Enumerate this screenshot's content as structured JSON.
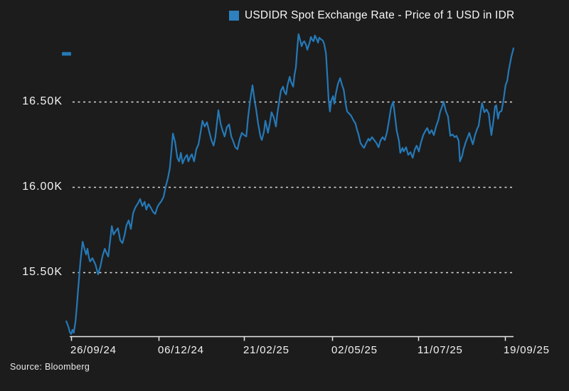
{
  "source": "Source: Bloomberg",
  "colors": {
    "background": "#1c1c1c",
    "line": "#2579b7",
    "legend_swatch": "#2e7fbd",
    "text": "#f2f2f2",
    "grid": "#f0f0f0",
    "axis": "#e8e8e8"
  },
  "chart_data": {
    "type": "line",
    "title": "USDIDR Spot Exchange Rate - Price of 1 USD in IDR",
    "xlabel": "",
    "ylabel": "",
    "legend_position": "top",
    "grid": "horizontal-dotted",
    "x_ticks": [
      "26/09/24",
      "06/12/24",
      "21/02/25",
      "02/05/25",
      "11/07/25",
      "19/09/25"
    ],
    "y_ticks": [
      {
        "label": "16.50K",
        "value": 16.5
      },
      {
        "label": "16.00K",
        "value": 16.0
      },
      {
        "label": "15.50K",
        "value": 15.5
      }
    ],
    "ylim": [
      15.125,
      16.95
    ],
    "last_value_marker": {
      "value": 16.78,
      "color": "#2579b7"
    },
    "series": [
      {
        "name": "USDIDR Spot Exchange Rate",
        "color": "#2579b7",
        "units": "thousand IDR per USD",
        "points": [
          [
            -0.011,
            15.213
          ],
          [
            -0.006,
            15.179
          ],
          [
            -0.003,
            15.15
          ],
          [
            0,
            15.138
          ],
          [
            0.003,
            15.163
          ],
          [
            0.006,
            15.146
          ],
          [
            0.01,
            15.213
          ],
          [
            0.013,
            15.304
          ],
          [
            0.016,
            15.408
          ],
          [
            0.021,
            15.563
          ],
          [
            0.026,
            15.679
          ],
          [
            0.031,
            15.629
          ],
          [
            0.034,
            15.604
          ],
          [
            0.037,
            15.638
          ],
          [
            0.04,
            15.588
          ],
          [
            0.043,
            15.563
          ],
          [
            0.048,
            15.583
          ],
          [
            0.055,
            15.546
          ],
          [
            0.061,
            15.488
          ],
          [
            0.066,
            15.533
          ],
          [
            0.071,
            15.596
          ],
          [
            0.076,
            15.638
          ],
          [
            0.08,
            15.613
          ],
          [
            0.084,
            15.592
          ],
          [
            0.088,
            15.679
          ],
          [
            0.092,
            15.771
          ],
          [
            0.096,
            15.721
          ],
          [
            0.101,
            15.742
          ],
          [
            0.106,
            15.758
          ],
          [
            0.111,
            15.688
          ],
          [
            0.116,
            15.671
          ],
          [
            0.121,
            15.721
          ],
          [
            0.125,
            15.775
          ],
          [
            0.13,
            15.804
          ],
          [
            0.135,
            15.754
          ],
          [
            0.14,
            15.846
          ],
          [
            0.145,
            15.879
          ],
          [
            0.151,
            15.904
          ],
          [
            0.156,
            15.929
          ],
          [
            0.161,
            15.888
          ],
          [
            0.166,
            15.913
          ],
          [
            0.17,
            15.867
          ],
          [
            0.175,
            15.9
          ],
          [
            0.18,
            15.879
          ],
          [
            0.185,
            15.854
          ],
          [
            0.19,
            15.842
          ],
          [
            0.195,
            15.883
          ],
          [
            0.199,
            15.9
          ],
          [
            0.204,
            15.917
          ],
          [
            0.209,
            15.942
          ],
          [
            0.214,
            16.004
          ],
          [
            0.219,
            16.054
          ],
          [
            0.223,
            16.108
          ],
          [
            0.227,
            16.221
          ],
          [
            0.23,
            16.313
          ],
          [
            0.235,
            16.263
          ],
          [
            0.24,
            16.171
          ],
          [
            0.244,
            16.15
          ],
          [
            0.248,
            16.2
          ],
          [
            0.252,
            16.138
          ],
          [
            0.257,
            16.171
          ],
          [
            0.262,
            16.188
          ],
          [
            0.265,
            16.15
          ],
          [
            0.27,
            16.179
          ],
          [
            0.273,
            16.192
          ],
          [
            0.278,
            16.15
          ],
          [
            0.283,
            16.221
          ],
          [
            0.288,
            16.25
          ],
          [
            0.293,
            16.325
          ],
          [
            0.297,
            16.388
          ],
          [
            0.302,
            16.354
          ],
          [
            0.307,
            16.379
          ],
          [
            0.312,
            16.325
          ],
          [
            0.317,
            16.275
          ],
          [
            0.322,
            16.242
          ],
          [
            0.326,
            16.292
          ],
          [
            0.333,
            16.45
          ],
          [
            0.338,
            16.371
          ],
          [
            0.342,
            16.333
          ],
          [
            0.347,
            16.296
          ],
          [
            0.352,
            16.35
          ],
          [
            0.357,
            16.367
          ],
          [
            0.362,
            16.296
          ],
          [
            0.367,
            16.263
          ],
          [
            0.371,
            16.233
          ],
          [
            0.376,
            16.221
          ],
          [
            0.381,
            16.279
          ],
          [
            0.386,
            16.317
          ],
          [
            0.391,
            16.304
          ],
          [
            0.396,
            16.296
          ],
          [
            0.4,
            16.408
          ],
          [
            0.405,
            16.513
          ],
          [
            0.41,
            16.596
          ],
          [
            0.415,
            16.504
          ],
          [
            0.418,
            16.458
          ],
          [
            0.423,
            16.367
          ],
          [
            0.428,
            16.296
          ],
          [
            0.431,
            16.275
          ],
          [
            0.436,
            16.325
          ],
          [
            0.439,
            16.388
          ],
          [
            0.442,
            16.354
          ],
          [
            0.445,
            16.317
          ],
          [
            0.45,
            16.388
          ],
          [
            0.453,
            16.438
          ],
          [
            0.458,
            16.408
          ],
          [
            0.463,
            16.354
          ],
          [
            0.466,
            16.429
          ],
          [
            0.471,
            16.513
          ],
          [
            0.474,
            16.563
          ],
          [
            0.479,
            16.588
          ],
          [
            0.482,
            16.558
          ],
          [
            0.486,
            16.542
          ],
          [
            0.489,
            16.596
          ],
          [
            0.494,
            16.646
          ],
          [
            0.497,
            16.617
          ],
          [
            0.502,
            16.588
          ],
          [
            0.505,
            16.658
          ],
          [
            0.508,
            16.7
          ],
          [
            0.511,
            16.804
          ],
          [
            0.514,
            16.896
          ],
          [
            0.518,
            16.858
          ],
          [
            0.521,
            16.825
          ],
          [
            0.524,
            16.846
          ],
          [
            0.527,
            16.854
          ],
          [
            0.531,
            16.833
          ],
          [
            0.534,
            16.804
          ],
          [
            0.539,
            16.846
          ],
          [
            0.542,
            16.879
          ],
          [
            0.545,
            16.863
          ],
          [
            0.548,
            16.854
          ],
          [
            0.551,
            16.888
          ],
          [
            0.555,
            16.867
          ],
          [
            0.558,
            16.846
          ],
          [
            0.561,
            16.875
          ],
          [
            0.564,
            16.867
          ],
          [
            0.569,
            16.858
          ],
          [
            0.572,
            16.838
          ],
          [
            0.576,
            16.783
          ],
          [
            0.579,
            16.658
          ],
          [
            0.582,
            16.513
          ],
          [
            0.585,
            16.442
          ],
          [
            0.588,
            16.504
          ],
          [
            0.592,
            16.533
          ],
          [
            0.595,
            16.488
          ],
          [
            0.598,
            16.542
          ],
          [
            0.603,
            16.604
          ],
          [
            0.608,
            16.638
          ],
          [
            0.613,
            16.592
          ],
          [
            0.616,
            16.571
          ],
          [
            0.621,
            16.479
          ],
          [
            0.624,
            16.442
          ],
          [
            0.629,
            16.429
          ],
          [
            0.633,
            16.417
          ],
          [
            0.638,
            16.392
          ],
          [
            0.643,
            16.371
          ],
          [
            0.646,
            16.338
          ],
          [
            0.65,
            16.304
          ],
          [
            0.654,
            16.258
          ],
          [
            0.658,
            16.242
          ],
          [
            0.662,
            16.229
          ],
          [
            0.667,
            16.258
          ],
          [
            0.672,
            16.283
          ],
          [
            0.675,
            16.271
          ],
          [
            0.68,
            16.292
          ],
          [
            0.685,
            16.275
          ],
          [
            0.69,
            16.258
          ],
          [
            0.695,
            16.233
          ],
          [
            0.699,
            16.271
          ],
          [
            0.704,
            16.292
          ],
          [
            0.709,
            16.275
          ],
          [
            0.714,
            16.321
          ],
          [
            0.719,
            16.396
          ],
          [
            0.723,
            16.463
          ],
          [
            0.728,
            16.5
          ],
          [
            0.733,
            16.396
          ],
          [
            0.736,
            16.329
          ],
          [
            0.741,
            16.271
          ],
          [
            0.744,
            16.2
          ],
          [
            0.749,
            16.229
          ],
          [
            0.752,
            16.208
          ],
          [
            0.757,
            16.233
          ],
          [
            0.762,
            16.188
          ],
          [
            0.767,
            16.204
          ],
          [
            0.772,
            16.171
          ],
          [
            0.777,
            16.221
          ],
          [
            0.781,
            16.242
          ],
          [
            0.786,
            16.208
          ],
          [
            0.791,
            16.263
          ],
          [
            0.796,
            16.304
          ],
          [
            0.801,
            16.329
          ],
          [
            0.805,
            16.346
          ],
          [
            0.81,
            16.313
          ],
          [
            0.815,
            16.333
          ],
          [
            0.82,
            16.304
          ],
          [
            0.825,
            16.354
          ],
          [
            0.83,
            16.392
          ],
          [
            0.834,
            16.438
          ],
          [
            0.839,
            16.475
          ],
          [
            0.842,
            16.5
          ],
          [
            0.847,
            16.446
          ],
          [
            0.852,
            16.413
          ],
          [
            0.857,
            16.3
          ],
          [
            0.862,
            16.308
          ],
          [
            0.867,
            16.292
          ],
          [
            0.871,
            16.3
          ],
          [
            0.876,
            16.271
          ],
          [
            0.879,
            16.15
          ],
          [
            0.884,
            16.183
          ],
          [
            0.887,
            16.221
          ],
          [
            0.892,
            16.263
          ],
          [
            0.897,
            16.296
          ],
          [
            0.9,
            16.317
          ],
          [
            0.905,
            16.275
          ],
          [
            0.908,
            16.25
          ],
          [
            0.913,
            16.304
          ],
          [
            0.918,
            16.342
          ],
          [
            0.921,
            16.358
          ],
          [
            0.926,
            16.446
          ],
          [
            0.929,
            16.492
          ],
          [
            0.934,
            16.438
          ],
          [
            0.939,
            16.454
          ],
          [
            0.944,
            16.429
          ],
          [
            0.947,
            16.363
          ],
          [
            0.95,
            16.304
          ],
          [
            0.955,
            16.396
          ],
          [
            0.958,
            16.471
          ],
          [
            0.961,
            16.479
          ],
          [
            0.965,
            16.4
          ],
          [
            0.968,
            16.438
          ],
          [
            0.973,
            16.446
          ],
          [
            0.977,
            16.504
          ],
          [
            0.982,
            16.596
          ],
          [
            0.986,
            16.625
          ],
          [
            0.989,
            16.683
          ],
          [
            0.992,
            16.721
          ],
          [
            0.995,
            16.763
          ],
          [
            1,
            16.813
          ]
        ]
      }
    ]
  }
}
